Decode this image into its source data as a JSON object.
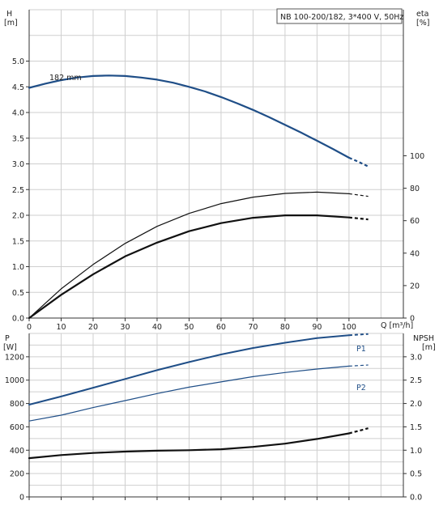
{
  "chart_data": [
    {
      "type": "line",
      "title": "NB 100-200/182, 3*400 V, 50Hz",
      "ylabel_left": "H",
      "ylabel_left_unit": "[m]",
      "ylabel_right": "eta",
      "ylabel_right_unit": "[%]",
      "xlabel": "Q [m³/h]",
      "xlim": [
        0,
        117
      ],
      "ylim_left": [
        0,
        6.0
      ],
      "ylim_right": [
        0,
        190
      ],
      "x_ticks": [
        "0",
        "10",
        "20",
        "30",
        "40",
        "50",
        "60",
        "70",
        "80",
        "90",
        "100"
      ],
      "y_ticks_left": [
        "0.0",
        "0.5",
        "1.0",
        "1.5",
        "2.0",
        "2.5",
        "3.0",
        "3.5",
        "4.0",
        "4.5",
        "5.0"
      ],
      "y_ticks_right": [
        "0",
        "20",
        "40",
        "60",
        "80",
        "100"
      ],
      "grid": true,
      "series": [
        {
          "name": "182 mm",
          "color": "#1f4e87",
          "axis": "left",
          "width": 2.2,
          "x": [
            0,
            5,
            10,
            15,
            20,
            25,
            30,
            35,
            40,
            45,
            50,
            55,
            60,
            65,
            70,
            75,
            80,
            85,
            90,
            95,
            100,
            103,
            106
          ],
          "y": [
            4.48,
            4.56,
            4.63,
            4.68,
            4.71,
            4.72,
            4.71,
            4.68,
            4.64,
            4.58,
            4.5,
            4.41,
            4.3,
            4.18,
            4.05,
            3.91,
            3.76,
            3.61,
            3.45,
            3.29,
            3.12,
            3.04,
            2.95
          ]
        },
        {
          "color": "#111111",
          "axis": "right",
          "width": 1.2,
          "x": [
            0,
            10,
            20,
            30,
            40,
            50,
            60,
            70,
            80,
            90,
            100,
            106
          ],
          "y": [
            0,
            18.0,
            33.0,
            46.0,
            56.5,
            64.5,
            70.5,
            74.5,
            76.8,
            77.6,
            76.6,
            75.0
          ]
        },
        {
          "color": "#111111",
          "axis": "right",
          "width": 2.2,
          "x": [
            0,
            10,
            20,
            30,
            40,
            50,
            60,
            70,
            80,
            90,
            100,
            106
          ],
          "y": [
            0,
            14.3,
            27.0,
            38.0,
            46.5,
            53.5,
            58.5,
            61.8,
            63.3,
            63.3,
            62.0,
            60.8
          ]
        }
      ]
    },
    {
      "type": "line",
      "ylabel_left": "P",
      "ylabel_left_unit": "[W]",
      "ylabel_right": "NPSH",
      "ylabel_right_unit": "[m]",
      "xlim": [
        0,
        117
      ],
      "ylim_left": [
        0,
        1400
      ],
      "ylim_right": [
        0,
        3.5
      ],
      "x_ticks": [
        "0",
        "10",
        "20",
        "30",
        "40",
        "50",
        "60",
        "70",
        "80",
        "90",
        "100"
      ],
      "y_ticks_left": [
        "0",
        "200",
        "400",
        "600",
        "800",
        "1000",
        "1200"
      ],
      "y_ticks_right": [
        "0.0",
        "0.5",
        "1.0",
        "1.5",
        "2.0",
        "2.5",
        "3.0"
      ],
      "grid": true,
      "series": [
        {
          "name": "P1",
          "color": "#1f4e87",
          "axis": "left",
          "width": 2.0,
          "x": [
            0,
            10,
            20,
            30,
            40,
            50,
            60,
            70,
            80,
            90,
            100,
            106
          ],
          "y": [
            790,
            860,
            935,
            1010,
            1085,
            1155,
            1220,
            1275,
            1320,
            1360,
            1385,
            1395
          ]
        },
        {
          "name": "P2",
          "color": "#1f4e87",
          "axis": "left",
          "width": 1.2,
          "x": [
            0,
            10,
            20,
            30,
            40,
            50,
            60,
            70,
            80,
            90,
            100,
            106
          ],
          "y": [
            650,
            700,
            765,
            825,
            885,
            940,
            985,
            1030,
            1065,
            1095,
            1120,
            1130
          ]
        },
        {
          "color": "#111111",
          "axis": "right",
          "width": 2.2,
          "x": [
            0,
            10,
            20,
            30,
            40,
            50,
            60,
            70,
            80,
            90,
            100,
            106
          ],
          "y": [
            0.83,
            0.895,
            0.94,
            0.97,
            0.99,
            1.0,
            1.02,
            1.07,
            1.14,
            1.24,
            1.36,
            1.47
          ]
        }
      ]
    }
  ]
}
